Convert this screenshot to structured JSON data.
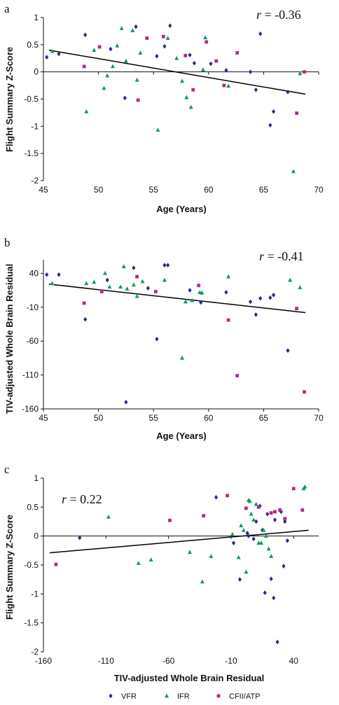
{
  "colors": {
    "VFR": "#2a2a8c",
    "IFR": "#119966",
    "CFII/ATP": "#b02a8a",
    "axis": "#111111"
  },
  "legend": [
    {
      "label": "VFR",
      "marker": "diamond"
    },
    {
      "label": "IFR",
      "marker": "triangle"
    },
    {
      "label": "CFII/ATP",
      "marker": "square"
    }
  ],
  "chart_data": [
    {
      "panel": "a",
      "type": "scatter",
      "xlabel": "Age (Years)",
      "ylabel": "Flight Summary Z-Score",
      "annotation": {
        "italic": "r",
        "text": " = -0.36"
      },
      "xlim": [
        45,
        70
      ],
      "ylim": [
        -2,
        1
      ],
      "xticks": [
        45,
        50,
        55,
        60,
        65,
        70
      ],
      "yticks": [
        -2,
        -1.5,
        -1,
        -0.5,
        0,
        0.5,
        1
      ],
      "ytick_labels": [
        "-2",
        "-1.5",
        "-1",
        "-0.5",
        "0",
        "0.5",
        "1"
      ],
      "trendline": {
        "x": [
          45.5,
          68.8
        ],
        "y": [
          0.4,
          -0.41
        ]
      },
      "series": [
        {
          "name": "VFR",
          "marker": "diamond",
          "x": [
            45.3,
            46.4,
            48.8,
            51.1,
            52.4,
            53.4,
            55.3,
            56.0,
            56.5,
            58.3,
            58.7,
            60.2,
            61.6,
            63.8,
            64.3,
            64.7,
            65.6,
            65.9,
            67.2
          ],
          "y": [
            0.27,
            0.33,
            0.68,
            0.42,
            -0.48,
            0.83,
            0.29,
            0.47,
            0.85,
            0.31,
            0.16,
            0.15,
            0.03,
            0.0,
            -0.33,
            0.7,
            -0.98,
            -0.73,
            -0.37
          ]
        },
        {
          "name": "IFR",
          "marker": "triangle",
          "x": [
            45.8,
            48.9,
            49.6,
            50.5,
            50.8,
            51.3,
            51.7,
            52.1,
            52.5,
            53.1,
            53.5,
            53.8,
            55.4,
            56.3,
            57.1,
            57.6,
            58.0,
            58.4,
            59.5,
            59.7,
            61.8,
            67.7,
            68.3
          ],
          "y": [
            0.38,
            -0.73,
            0.4,
            -0.3,
            -0.07,
            0.1,
            0.48,
            0.8,
            0.2,
            0.76,
            -0.15,
            0.35,
            -1.07,
            0.62,
            0.25,
            -0.17,
            -0.47,
            -0.65,
            0.04,
            0.63,
            -0.26,
            -1.83,
            -0.03
          ]
        },
        {
          "name": "CFII/ATP",
          "marker": "square",
          "x": [
            48.7,
            50.1,
            53.6,
            54.4,
            55.9,
            57.9,
            58.6,
            59.8,
            60.7,
            61.4,
            62.6,
            68.0,
            68.7
          ],
          "y": [
            0.1,
            0.46,
            -0.52,
            0.62,
            0.65,
            0.3,
            -0.33,
            0.55,
            0.2,
            -0.25,
            0.35,
            -0.76,
            0.0
          ]
        }
      ]
    },
    {
      "panel": "b",
      "type": "scatter",
      "xlabel": "Age (Years)",
      "ylabel": "TIV-adjusted Whole Brain Residual",
      "annotation": {
        "italic": "r",
        "text": " = -0.41"
      },
      "xlim": [
        45,
        70
      ],
      "ylim": [
        -160,
        60
      ],
      "xticks": [
        45,
        50,
        55,
        60,
        65,
        70
      ],
      "yticks": [
        -160,
        -110,
        -60,
        -10,
        40
      ],
      "ytick_labels": [
        "-160",
        "-110",
        "-60",
        "-10",
        "40"
      ],
      "trendline": {
        "x": [
          45.5,
          68.8
        ],
        "y": [
          24,
          -18
        ]
      },
      "series": [
        {
          "name": "VFR",
          "marker": "diamond",
          "x": [
            45.3,
            46.4,
            48.8,
            50.8,
            52.5,
            53.2,
            54.5,
            55.3,
            56.0,
            56.3,
            58.3,
            59.3,
            61.6,
            63.8,
            64.3,
            64.7,
            65.6,
            65.9,
            67.2
          ],
          "y": [
            38,
            38,
            -28,
            30,
            -150,
            48,
            18,
            -57,
            52,
            52,
            15,
            -3,
            12,
            -2,
            -21,
            3,
            4,
            8,
            -74
          ]
        },
        {
          "name": "IFR",
          "marker": "triangle",
          "x": [
            45.8,
            48.9,
            49.6,
            50.6,
            51.0,
            52.0,
            52.3,
            52.6,
            53.2,
            53.5,
            54.0,
            56.0,
            57.6,
            57.9,
            58.5,
            59.2,
            59.4,
            61.8,
            67.4,
            68.3
          ],
          "y": [
            25,
            25,
            27,
            40,
            20,
            20,
            50,
            17,
            23,
            6,
            28,
            30,
            -85,
            -2,
            0,
            12,
            11,
            35,
            30,
            19
          ]
        },
        {
          "name": "CFII/ATP",
          "marker": "square",
          "x": [
            48.7,
            50.3,
            53.5,
            55.2,
            59.1,
            61.8,
            62.6,
            68.0,
            68.7
          ],
          "y": [
            -4,
            13,
            35,
            13,
            22,
            -29,
            -111,
            -12,
            -135
          ]
        }
      ]
    },
    {
      "panel": "c",
      "type": "scatter",
      "xlabel": "TIV-adjusted Whole Brain Residual",
      "ylabel": "Flight Summary Z-Score",
      "annotation": {
        "italic": "r",
        "text": " = 0.22"
      },
      "xlim": [
        -160,
        60
      ],
      "ylim": [
        -2,
        1
      ],
      "xticks": [
        -160,
        -110,
        -60,
        -10,
        40
      ],
      "yticks": [
        -2,
        -1.5,
        -1,
        -0.5,
        0,
        0.5,
        1
      ],
      "ytick_labels": [
        "-2",
        "-1.5",
        "-1",
        "-0.5",
        "0",
        "0.5",
        "1"
      ],
      "trendline": {
        "x": [
          -155,
          52
        ],
        "y": [
          -0.29,
          0.1
        ]
      },
      "series": [
        {
          "name": "VFR",
          "marker": "diamond",
          "x": [
            -131,
            -22,
            -8,
            -3,
            3,
            4,
            8,
            10,
            13,
            15,
            17,
            19,
            22,
            24,
            25,
            27,
            30,
            32,
            33,
            35
          ],
          "y": [
            -0.03,
            0.67,
            -0.12,
            -0.75,
            0.05,
            0.0,
            -0.05,
            0.25,
            0.52,
            0.1,
            -0.98,
            0.38,
            -0.74,
            -1.07,
            0.28,
            -1.83,
            0.42,
            -0.52,
            0.25,
            -0.08
          ]
        },
        {
          "name": "IFR",
          "marker": "triangle",
          "x": [
            -108,
            -84,
            -74,
            -43,
            -33,
            -26,
            -9,
            -4,
            -2,
            0,
            2,
            4,
            5,
            6,
            8,
            10,
            12,
            14,
            16,
            18,
            20,
            22,
            48,
            49
          ],
          "y": [
            0.33,
            -0.47,
            -0.41,
            -0.28,
            -0.79,
            -0.35,
            0.03,
            -0.37,
            0.18,
            0.1,
            -0.62,
            0.62,
            0.6,
            0.38,
            0.28,
            0.55,
            -0.12,
            -0.12,
            0.1,
            0.0,
            -0.22,
            -0.35,
            0.82,
            0.85
          ]
        },
        {
          "name": "CFII/ATP",
          "marker": "square",
          "x": [
            -150,
            -59,
            -32,
            -13,
            2,
            12,
            22,
            25,
            29,
            33,
            40,
            47
          ],
          "y": [
            -0.49,
            0.27,
            0.35,
            0.7,
            0.48,
            0.5,
            0.4,
            0.42,
            0.45,
            0.3,
            0.82,
            0.45
          ]
        }
      ]
    }
  ]
}
